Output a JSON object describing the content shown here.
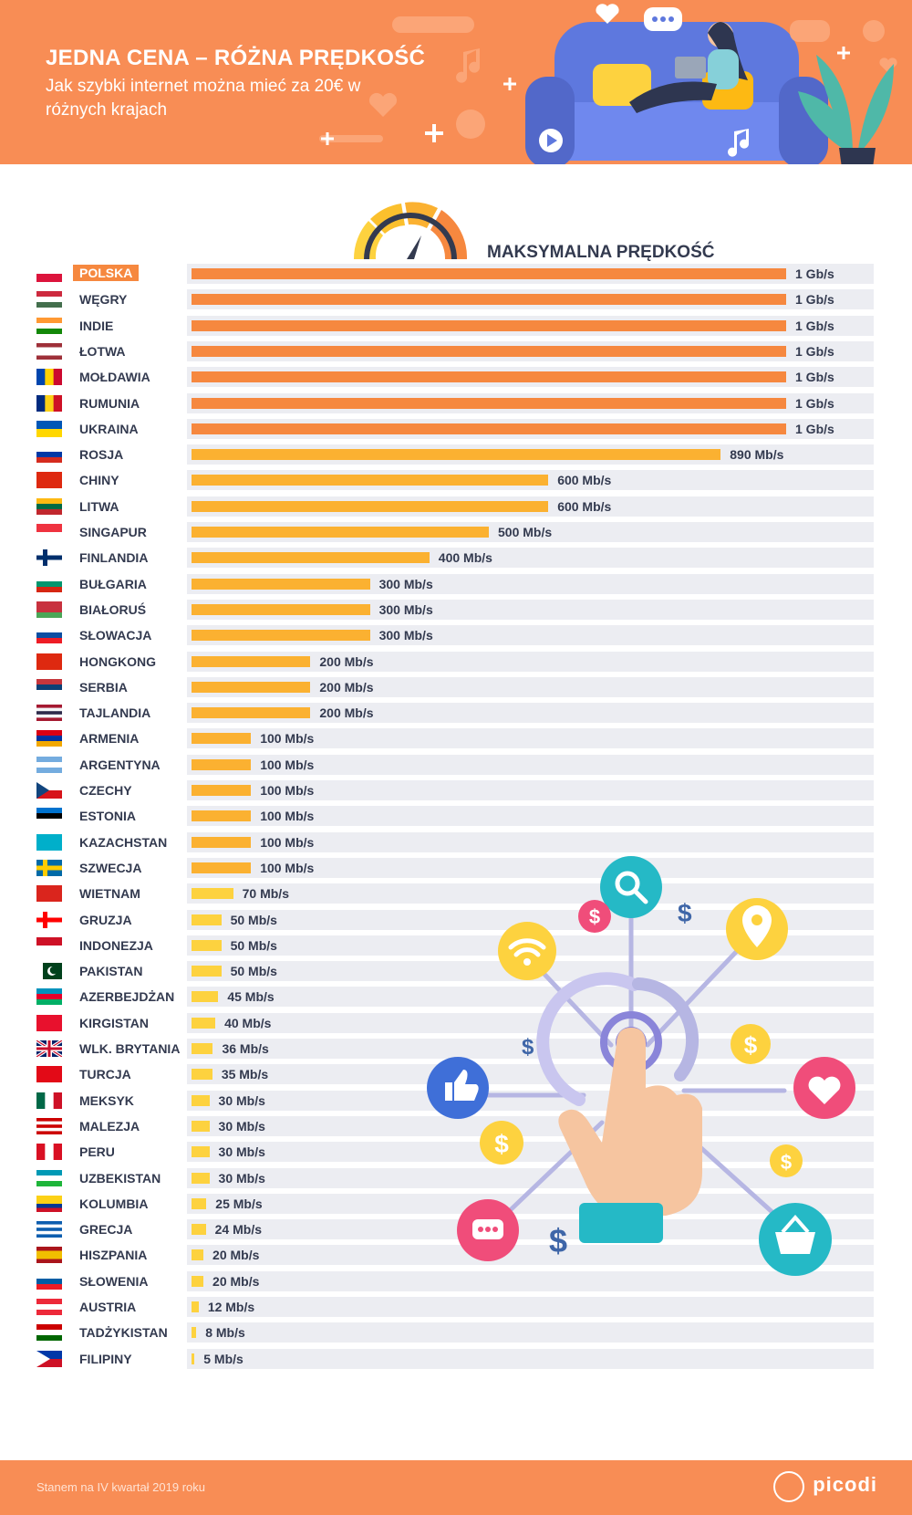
{
  "header": {
    "title": "JEDNA CENA – RÓŻNA PRĘDKOŚĆ",
    "subtitle": "Jak szybki internet można mieć za 20€ w różnych krajach"
  },
  "chart_title": "MAKSYMALNA PRĘDKOŚĆ",
  "chart_data": {
    "type": "bar",
    "orientation": "horizontal",
    "title": "MAKSYMALNA PRĘDKOŚĆ",
    "unit": "Mb/s",
    "categories": [
      "POLSKA",
      "WĘGRY",
      "INDIE",
      "ŁOTWA",
      "MOŁDAWIA",
      "RUMUNIA",
      "UKRAINA",
      "ROSJA",
      "CHINY",
      "LITWA",
      "SINGAPUR",
      "FINLANDIA",
      "BUŁGARIA",
      "BIAŁORUŚ",
      "SŁOWACJA",
      "HONGKONG",
      "SERBIA",
      "TAJLANDIA",
      "ARMENIA",
      "ARGENTYNA",
      "CZECHY",
      "ESTONIA",
      "KAZACHSTAN",
      "SZWECJA",
      "WIETNAM",
      "GRUZJA",
      "INDONEZJA",
      "PAKISTAN",
      "AZERBEJDŻAN",
      "KIRGISTAN",
      "WLK. BRYTANIA",
      "TURCJA",
      "MEKSYK",
      "MALEZJA",
      "PERU",
      "UZBEKISTAN",
      "KOLUMBIA",
      "GRECJA",
      "HISZPANIA",
      "SŁOWENIA",
      "AUSTRIA",
      "TADŻYKISTAN",
      "FILIPINY"
    ],
    "values": [
      1000,
      1000,
      1000,
      1000,
      1000,
      1000,
      1000,
      890,
      600,
      600,
      500,
      400,
      300,
      300,
      300,
      200,
      200,
      200,
      100,
      100,
      100,
      100,
      100,
      100,
      70,
      50,
      50,
      50,
      45,
      40,
      36,
      35,
      30,
      30,
      30,
      30,
      25,
      24,
      20,
      20,
      12,
      8,
      5
    ],
    "labels": [
      "1 Gb/s",
      "1 Gb/s",
      "1 Gb/s",
      "1 Gb/s",
      "1 Gb/s",
      "1 Gb/s",
      "1 Gb/s",
      "890 Mb/s",
      "600 Mb/s",
      "600 Mb/s",
      "500 Mb/s",
      "400 Mb/s",
      "300 Mb/s",
      "300 Mb/s",
      "300 Mb/s",
      "200 Mb/s",
      "200 Mb/s",
      "200 Mb/s",
      "100 Mb/s",
      "100 Mb/s",
      "100 Mb/s",
      "100 Mb/s",
      "100 Mb/s",
      "100 Mb/s",
      "70 Mb/s",
      "50 Mb/s",
      "50 Mb/s",
      "50 Mb/s",
      "45 Mb/s",
      "40 Mb/s",
      "36 Mb/s",
      "35 Mb/s",
      "30 Mb/s",
      "30 Mb/s",
      "30 Mb/s",
      "30 Mb/s",
      "25 Mb/s",
      "24 Mb/s",
      "20 Mb/s",
      "20 Mb/s",
      "12 Mb/s",
      "8 Mb/s",
      "5 Mb/s"
    ],
    "highlight": "POLSKA",
    "xlim": [
      0,
      1000
    ],
    "grid": false,
    "legend": "none",
    "colors": {
      "top": "#f6883f",
      "high": "#fbb131",
      "low": "#fdd23f",
      "track": "#ecedf2",
      "highlight": "#f6883f"
    }
  },
  "flags": [
    {
      "type": "h",
      "c": [
        "#ffffff",
        "#dc143c"
      ]
    },
    {
      "type": "h",
      "c": [
        "#cd2a3e",
        "#ffffff",
        "#436f4d"
      ]
    },
    {
      "type": "h",
      "c": [
        "#ff9933",
        "#ffffff",
        "#138808"
      ]
    },
    {
      "type": "h3",
      "c": [
        "#9e3039",
        "#ffffff",
        "#9e3039"
      ]
    },
    {
      "type": "v",
      "c": [
        "#0046ae",
        "#ffd200",
        "#cc092f"
      ]
    },
    {
      "type": "v",
      "c": [
        "#002b7f",
        "#fcd116",
        "#ce1126"
      ]
    },
    {
      "type": "h",
      "c": [
        "#0057b7",
        "#ffd700"
      ]
    },
    {
      "type": "h",
      "c": [
        "#ffffff",
        "#0039a6",
        "#d52b1e"
      ]
    },
    {
      "type": "h",
      "c": [
        "#de2910"
      ]
    },
    {
      "type": "h",
      "c": [
        "#fdb913",
        "#006a44",
        "#c1272d"
      ]
    },
    {
      "type": "h",
      "c": [
        "#ef3340",
        "#ffffff"
      ]
    },
    {
      "type": "cross",
      "c": [
        "#ffffff",
        "#002f6c"
      ]
    },
    {
      "type": "h",
      "c": [
        "#ffffff",
        "#00966e",
        "#d62612"
      ]
    },
    {
      "type": "h2",
      "c": [
        "#c8313e",
        "#4aa657"
      ]
    },
    {
      "type": "h",
      "c": [
        "#ffffff",
        "#0b4ea2",
        "#ee1c25"
      ]
    },
    {
      "type": "h",
      "c": [
        "#de2910"
      ]
    },
    {
      "type": "h",
      "c": [
        "#c6363c",
        "#0c4076",
        "#ffffff"
      ]
    },
    {
      "type": "h5",
      "c": [
        "#a51931",
        "#f4f5f8",
        "#2d2a4a",
        "#f4f5f8",
        "#a51931"
      ]
    },
    {
      "type": "h",
      "c": [
        "#d90012",
        "#0033a0",
        "#f2a800"
      ]
    },
    {
      "type": "h",
      "c": [
        "#74acdf",
        "#ffffff",
        "#74acdf"
      ]
    },
    {
      "type": "cz",
      "c": [
        "#ffffff",
        "#d7141a",
        "#11457e"
      ]
    },
    {
      "type": "h",
      "c": [
        "#0072ce",
        "#000000",
        "#ffffff"
      ]
    },
    {
      "type": "h",
      "c": [
        "#00afca"
      ]
    },
    {
      "type": "cross",
      "c": [
        "#006aa7",
        "#fecc00"
      ]
    },
    {
      "type": "h",
      "c": [
        "#da251d"
      ]
    },
    {
      "type": "cross",
      "c": [
        "#ffffff",
        "#ff0000"
      ]
    },
    {
      "type": "h",
      "c": [
        "#ce1126",
        "#ffffff"
      ]
    },
    {
      "type": "pk",
      "c": [
        "#ffffff",
        "#01411c"
      ]
    },
    {
      "type": "h",
      "c": [
        "#0092bc",
        "#e4002b",
        "#00af66"
      ]
    },
    {
      "type": "h",
      "c": [
        "#e8112d"
      ]
    },
    {
      "type": "uk",
      "c": [
        "#012169",
        "#ffffff",
        "#c8102e"
      ]
    },
    {
      "type": "h",
      "c": [
        "#e30a17"
      ]
    },
    {
      "type": "v",
      "c": [
        "#006847",
        "#ffffff",
        "#ce1126"
      ]
    },
    {
      "type": "h5",
      "c": [
        "#cc0001",
        "#ffffff",
        "#cc0001",
        "#ffffff",
        "#cc0001"
      ]
    },
    {
      "type": "v",
      "c": [
        "#d91023",
        "#ffffff",
        "#d91023"
      ]
    },
    {
      "type": "h",
      "c": [
        "#0099b5",
        "#ffffff",
        "#1eb53a"
      ]
    },
    {
      "type": "h2",
      "c": [
        "#fcd116",
        "#003893",
        "#ce1126"
      ]
    },
    {
      "type": "h5",
      "c": [
        "#0d5eaf",
        "#ffffff",
        "#0d5eaf",
        "#ffffff",
        "#0d5eaf"
      ]
    },
    {
      "type": "h3",
      "c": [
        "#aa151b",
        "#f1bf00",
        "#aa151b"
      ]
    },
    {
      "type": "h",
      "c": [
        "#ffffff",
        "#005da4",
        "#ed1c24"
      ]
    },
    {
      "type": "h",
      "c": [
        "#ed2939",
        "#ffffff",
        "#ed2939"
      ]
    },
    {
      "type": "h",
      "c": [
        "#cc0000",
        "#ffffff",
        "#006600"
      ]
    },
    {
      "type": "ph",
      "c": [
        "#0038a8",
        "#ce1126",
        "#ffffff"
      ]
    }
  ],
  "footer": {
    "note": "Stanem na IV kwartał 2019 roku",
    "brand": "picodi"
  }
}
